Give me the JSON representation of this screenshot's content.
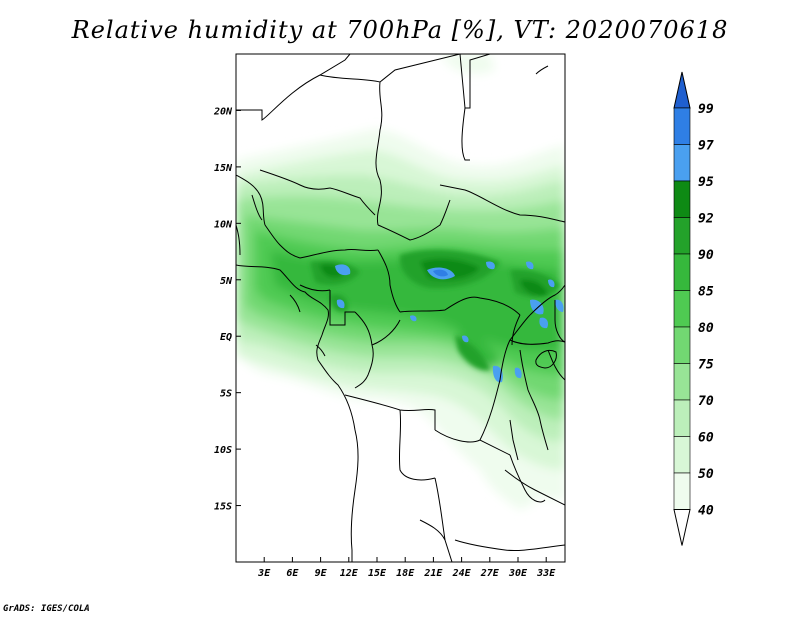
{
  "title": "Relative humidity at 700hPa [%], VT: 2020070618",
  "credit": "GrADS: IGES/COLA",
  "map": {
    "lon_labels": [
      "3E",
      "6E",
      "9E",
      "12E",
      "15E",
      "18E",
      "21E",
      "24E",
      "27E",
      "30E",
      "33E"
    ],
    "lat_labels": [
      "20N",
      "15N",
      "10N",
      "5N",
      "EQ",
      "5S",
      "10S",
      "15S"
    ],
    "lon_range": [
      0,
      35
    ],
    "lat_range": [
      -20,
      25
    ]
  },
  "colorbar": {
    "levels": [
      "99",
      "97",
      "95",
      "92",
      "90",
      "85",
      "80",
      "75",
      "70",
      "60",
      "50",
      "40"
    ],
    "colors": [
      "#1f5fcf",
      "#2f7fe5",
      "#4aa0f0",
      "#0e8a14",
      "#23a22a",
      "#36b83c",
      "#4fca52",
      "#72d872",
      "#98e496",
      "#bcefba",
      "#d8f7d6",
      "#effcee"
    ]
  }
}
